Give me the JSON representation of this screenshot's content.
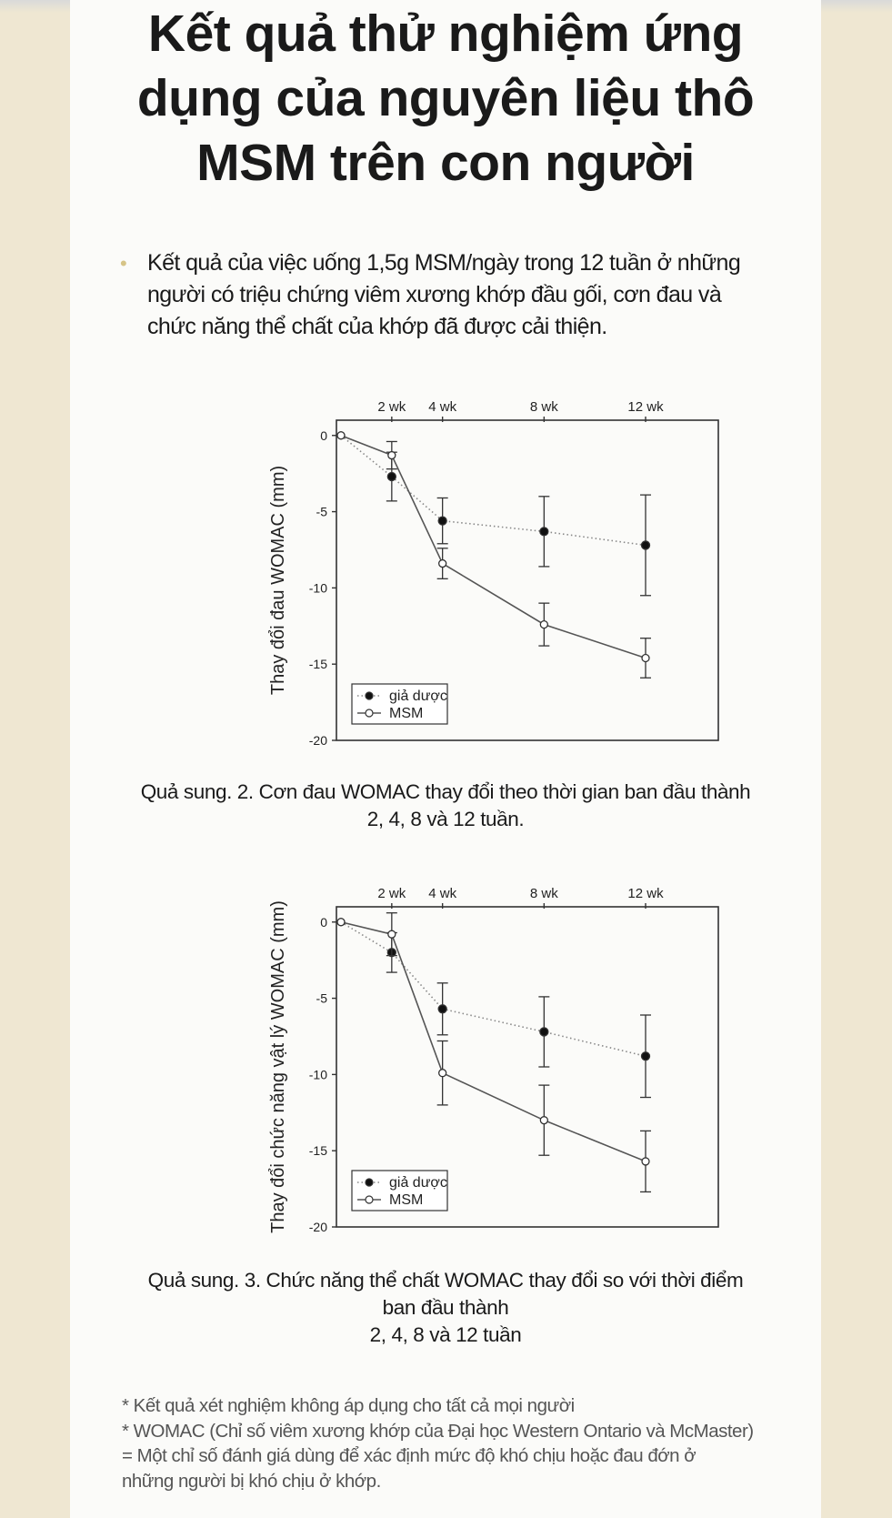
{
  "title_lines": [
    "Kết quả thử nghiệm ứng",
    "dụng của nguyên liệu thô",
    "MSM trên con người"
  ],
  "bullet": {
    "marker": "•",
    "lines": [
      "Kết quả của việc uống 1,5g MSM/ngày trong 12 tuần ở những",
      "người có triệu chứng viêm xương khớp đầu gối, cơn đau và",
      "chức năng thể chất của khớp đã được cải thiện."
    ]
  },
  "captions": [
    [
      "Quả sung. 2. Cơn đau WOMAC thay đổi theo thời gian ban đầu thành",
      "2, 4, 8 và 12 tuần."
    ],
    [
      "Quả sung. 3. Chức năng thể chất WOMAC thay đổi so với thời điểm",
      "ban đầu thành",
      "2, 4, 8 và 12 tuần"
    ]
  ],
  "notes": [
    "* Kết quả xét nghiệm không áp dụng cho tất cả mọi người",
    "* WOMAC (Chỉ số viêm xương khớp của Đại học Western Ontario và McMaster)",
    "= Một chỉ số đánh giá dùng để xác định mức độ khó chịu hoặc đau đớn ở",
    "những người bị khó chịu ở khớp."
  ],
  "colors": {
    "background": "#efe7d2",
    "page": "#fbfbf9",
    "bullet": "#d6c487",
    "ink": "#333333"
  },
  "chart_data": [
    {
      "type": "line",
      "ylabel": "Thay đổi đau WOMAC (mm)",
      "x": [
        0,
        2,
        4,
        8,
        12
      ],
      "top_ticks": [
        "2 wk",
        "4 wk",
        "8 wk",
        "12 wk"
      ],
      "yticks": [
        0,
        -5,
        -10,
        -15,
        -20
      ],
      "ylim": [
        -20,
        1
      ],
      "legend_position": "bottom-left",
      "series": [
        {
          "name": "giả dược",
          "marker": "filled",
          "line": "dotted",
          "values": [
            0,
            -2.7,
            -5.6,
            -6.3,
            -7.2
          ],
          "errors": [
            0,
            1.6,
            1.5,
            2.3,
            3.3
          ]
        },
        {
          "name": "MSM",
          "marker": "open",
          "line": "solid",
          "values": [
            0,
            -1.3,
            -8.4,
            -12.4,
            -14.6
          ],
          "errors": [
            0,
            0.9,
            1.0,
            1.4,
            1.3
          ]
        }
      ]
    },
    {
      "type": "line",
      "ylabel": "Thay đổi chức năng vật lý WOMAC (mm)",
      "x": [
        0,
        2,
        4,
        8,
        12
      ],
      "top_ticks": [
        "2 wk",
        "4 wk",
        "8 wk",
        "12 wk"
      ],
      "yticks": [
        0,
        -5,
        -10,
        -15,
        -20
      ],
      "ylim": [
        -20,
        1
      ],
      "legend_position": "bottom-left",
      "series": [
        {
          "name": "giả dược",
          "marker": "filled",
          "line": "dotted",
          "values": [
            0,
            -2.0,
            -5.7,
            -7.2,
            -8.8
          ],
          "errors": [
            0,
            1.3,
            1.7,
            2.3,
            2.7
          ]
        },
        {
          "name": "MSM",
          "marker": "open",
          "line": "solid",
          "values": [
            0,
            -0.8,
            -9.9,
            -13.0,
            -15.7
          ],
          "errors": [
            0,
            1.4,
            2.1,
            2.3,
            2.0
          ]
        }
      ]
    }
  ]
}
